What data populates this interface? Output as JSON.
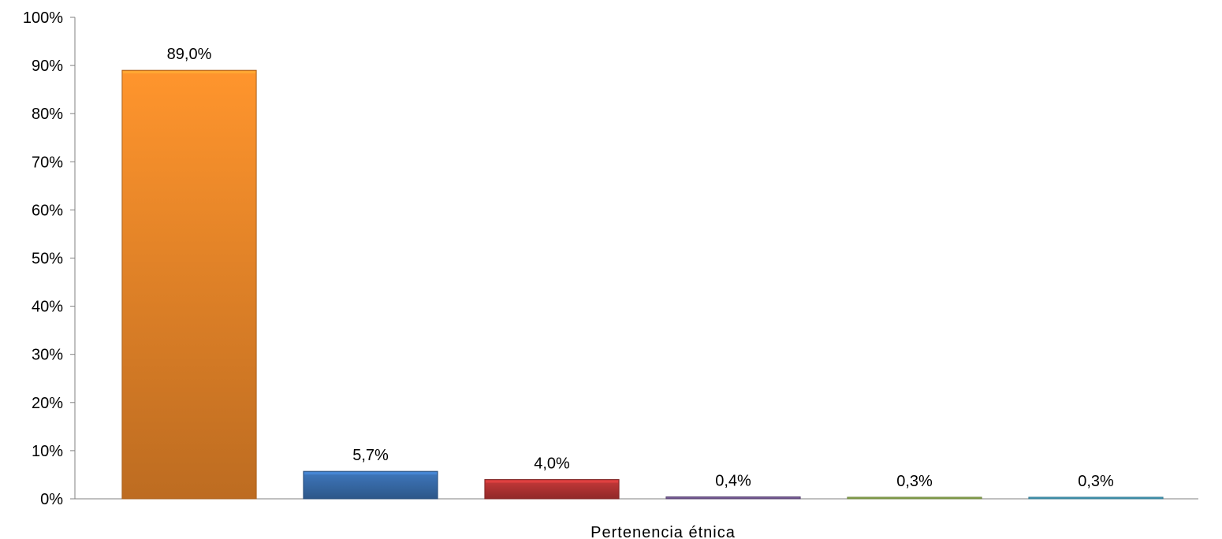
{
  "chart_data": {
    "type": "bar",
    "xlabel": "Pertenencia étnica",
    "ylabel": "",
    "ylim": [
      0,
      100
    ],
    "y_ticks": [
      "0%",
      "10%",
      "20%",
      "30%",
      "40%",
      "50%",
      "60%",
      "70%",
      "80%",
      "90%",
      "100%"
    ],
    "grid": false,
    "legend": "none",
    "bars": [
      {
        "value": 89.0,
        "label": "89,0%",
        "color": "#f28a2a"
      },
      {
        "value": 5.7,
        "label": "5,7%",
        "color": "#3a6fb0"
      },
      {
        "value": 4.0,
        "label": "4,0%",
        "color": "#b83535"
      },
      {
        "value": 0.4,
        "label": "0,4%",
        "color": "#7e61a0"
      },
      {
        "value": 0.3,
        "label": "0,3%",
        "color": "#9aba58"
      },
      {
        "value": 0.3,
        "label": "0,3%",
        "color": "#4aaacb"
      }
    ]
  }
}
